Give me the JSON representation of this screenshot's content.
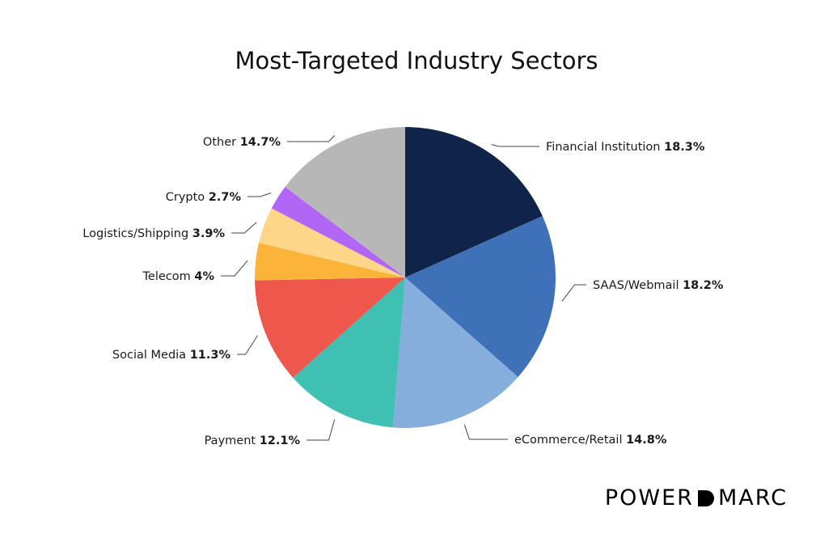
{
  "chart_data": {
    "type": "pie",
    "title": "Most-Targeted Industry Sectors",
    "slices": [
      {
        "label": "Financial Institution",
        "value_label": "18.3%",
        "value": 18.3,
        "color": "#10244A"
      },
      {
        "label": "SAAS/Webmail",
        "value_label": "18.2%",
        "value": 18.2,
        "color": "#3E71B8"
      },
      {
        "label": "eCommerce/Retail ",
        "value_label": "14.8%",
        "value": 14.8,
        "color": "#86AEDD"
      },
      {
        "label": "Payment",
        "value_label": "12.1%",
        "value": 12.1,
        "color": "#40BFB3"
      },
      {
        "label": "Social Media",
        "value_label": "11.3%",
        "value": 11.3,
        "color": "#EE574B"
      },
      {
        "label": "Telecom",
        "value_label": "4%",
        "value": 4.0,
        "color": "#FBB33A"
      },
      {
        "label": "Logistics/Shipping",
        "value_label": "3.9%",
        "value": 3.9,
        "color": "#FDD68A"
      },
      {
        "label": "Crypto",
        "value_label": "2.7%",
        "value": 2.7,
        "color": "#B266F5"
      },
      {
        "label": "Other",
        "value_label": "14.7%",
        "value": 14.7,
        "color": "#B7B7B7"
      }
    ],
    "start_angle": "12 o'clock",
    "direction": "clockwise",
    "legend": "none (direct labels with leader lines)"
  },
  "brand": {
    "left": "POWER",
    "right": "MARC"
  }
}
